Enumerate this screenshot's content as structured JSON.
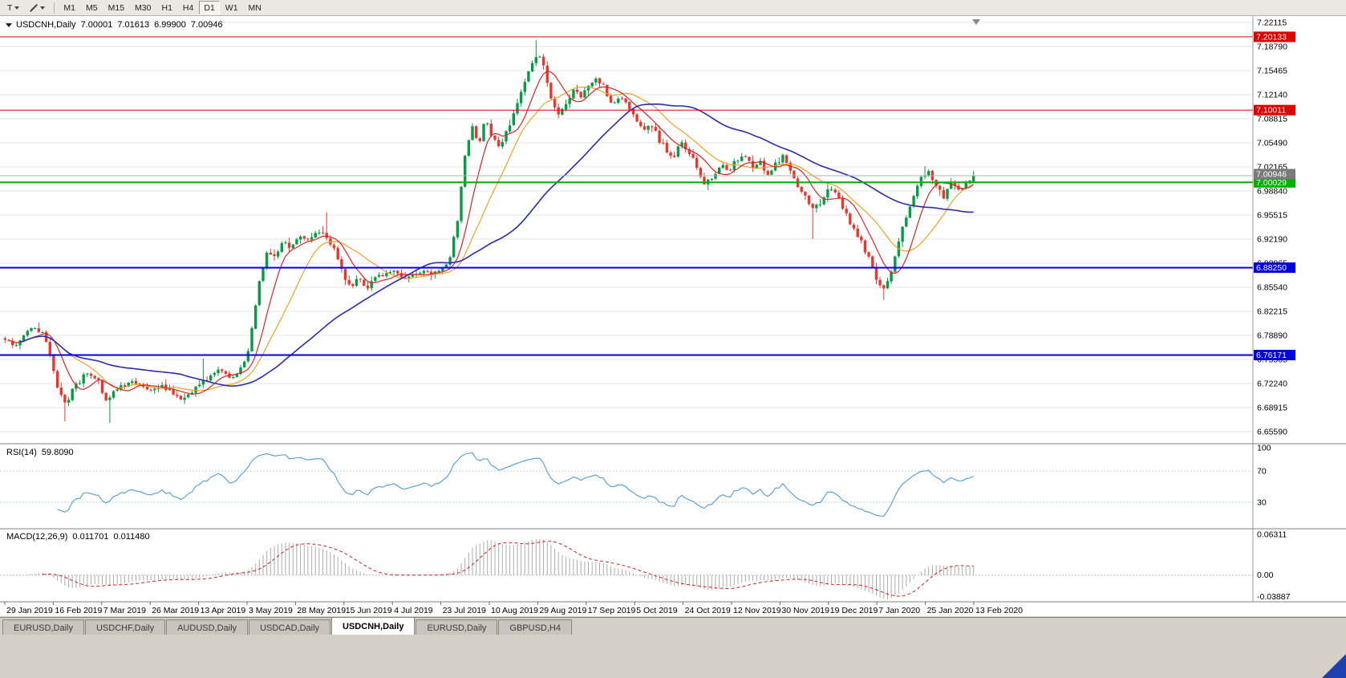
{
  "toolbar": {
    "text_tool_label": "T",
    "timeframes": [
      "M1",
      "M5",
      "M15",
      "M30",
      "H1",
      "H4",
      "D1",
      "W1",
      "MN"
    ],
    "active_timeframe": "D1"
  },
  "chart": {
    "symbol_title": "USDCNH,Daily",
    "ohlc": {
      "open": "7.00001",
      "high": "7.01613",
      "low": "6.99900",
      "close": "7.00946"
    }
  },
  "rsi_panel": {
    "name": "RSI(14)",
    "value": "59.8090",
    "scale": [
      "100",
      "70",
      "30"
    ]
  },
  "macd_panel": {
    "name": "MACD(12,26,9)",
    "value1": "0.011701",
    "value2": "0.011480",
    "scale": [
      "0.06311",
      "0.00",
      "-0.03887"
    ]
  },
  "tabs": {
    "items": [
      "EURUSD,Daily",
      "USDCHF,Daily",
      "AUDUSD,Daily",
      "USDCAD,Daily",
      "USDCNH,Daily",
      "EURUSD,Daily",
      "GBPUSD,H4"
    ],
    "active_index": 4
  },
  "chart_data": {
    "type": "candlestick+indicators",
    "symbol": "USDCNH",
    "timeframe": "Daily",
    "bars": 260,
    "x_labels": [
      "29 Jan 2019",
      "16 Feb 2019",
      "7 Mar 2019",
      "26 Mar 2019",
      "13 Apr 2019",
      "3 May 2019",
      "28 May 2019",
      "15 Jun 2019",
      "4 Jul 2019",
      "23 Jul 2019",
      "10 Aug 2019",
      "29 Aug 2019",
      "17 Sep 2019",
      "5 Oct 2019",
      "24 Oct 2019",
      "12 Nov 2019",
      "30 Nov 2019",
      "19 Dec 2019",
      "7 Jan 2020",
      "25 Jan 2020",
      "13 Feb 2020"
    ],
    "y_ticks_price": [
      "7.22115",
      "7.18790",
      "7.15465",
      "7.12140",
      "7.08815",
      "7.05490",
      "7.02165",
      "6.98840",
      "6.95515",
      "6.92190",
      "6.88865",
      "6.85540",
      "6.82215",
      "6.78890",
      "6.75565",
      "6.72240",
      "6.68915",
      "6.65590"
    ],
    "price_range": {
      "max": 7.2278,
      "min": 6.6404
    },
    "levels": [
      {
        "value": 7.20133,
        "label": "7.20133",
        "color": "#e00000",
        "width": 1
      },
      {
        "value": 7.10011,
        "label": "7.10011",
        "color": "#e00000",
        "width": 1
      },
      {
        "value": 7.00029,
        "label": "7.00029",
        "color": "#00b200",
        "width": 2
      },
      {
        "value": 6.8825,
        "label": "6.88250",
        "color": "#0000e0",
        "width": 2
      },
      {
        "value": 6.76171,
        "label": "6.76171",
        "color": "#0000e0",
        "width": 2
      }
    ],
    "current_price": 7.00946,
    "current_price_label": "7.00946",
    "last_bar": {
      "o": 7.00001,
      "h": 7.01613,
      "l": 6.999,
      "c": 7.00946
    },
    "price_path": [
      [
        0.0,
        6.785
      ],
      [
        0.01,
        6.772
      ],
      [
        0.02,
        6.788
      ],
      [
        0.03,
        6.8
      ],
      [
        0.04,
        6.792
      ],
      [
        0.048,
        6.752
      ],
      [
        0.055,
        6.712
      ],
      [
        0.062,
        6.695
      ],
      [
        0.072,
        6.718
      ],
      [
        0.085,
        6.738
      ],
      [
        0.095,
        6.728
      ],
      [
        0.105,
        6.7
      ],
      [
        0.115,
        6.712
      ],
      [
        0.128,
        6.726
      ],
      [
        0.14,
        6.718
      ],
      [
        0.152,
        6.712
      ],
      [
        0.162,
        6.722
      ],
      [
        0.172,
        6.71
      ],
      [
        0.182,
        6.7
      ],
      [
        0.192,
        6.712
      ],
      [
        0.202,
        6.722
      ],
      [
        0.212,
        6.73
      ],
      [
        0.222,
        6.742
      ],
      [
        0.232,
        6.731
      ],
      [
        0.242,
        6.739
      ],
      [
        0.25,
        6.758
      ],
      [
        0.257,
        6.812
      ],
      [
        0.263,
        6.868
      ],
      [
        0.27,
        6.902
      ],
      [
        0.278,
        6.897
      ],
      [
        0.286,
        6.918
      ],
      [
        0.295,
        6.91
      ],
      [
        0.304,
        6.926
      ],
      [
        0.313,
        6.92
      ],
      [
        0.322,
        6.933
      ],
      [
        0.331,
        6.926
      ],
      [
        0.34,
        6.91
      ],
      [
        0.349,
        6.874
      ],
      [
        0.357,
        6.852
      ],
      [
        0.364,
        6.87
      ],
      [
        0.372,
        6.853
      ],
      [
        0.381,
        6.866
      ],
      [
        0.391,
        6.874
      ],
      [
        0.401,
        6.877
      ],
      [
        0.411,
        6.869
      ],
      [
        0.421,
        6.873
      ],
      [
        0.431,
        6.877
      ],
      [
        0.441,
        6.873
      ],
      [
        0.451,
        6.88
      ],
      [
        0.46,
        6.898
      ],
      [
        0.468,
        6.955
      ],
      [
        0.475,
        7.04
      ],
      [
        0.482,
        7.08
      ],
      [
        0.489,
        7.055
      ],
      [
        0.496,
        7.086
      ],
      [
        0.504,
        7.06
      ],
      [
        0.511,
        7.046
      ],
      [
        0.519,
        7.076
      ],
      [
        0.527,
        7.1
      ],
      [
        0.535,
        7.132
      ],
      [
        0.543,
        7.16
      ],
      [
        0.55,
        7.178
      ],
      [
        0.556,
        7.165
      ],
      [
        0.563,
        7.12
      ],
      [
        0.571,
        7.093
      ],
      [
        0.579,
        7.108
      ],
      [
        0.587,
        7.129
      ],
      [
        0.595,
        7.116
      ],
      [
        0.603,
        7.134
      ],
      [
        0.611,
        7.146
      ],
      [
        0.619,
        7.13
      ],
      [
        0.627,
        7.108
      ],
      [
        0.635,
        7.116
      ],
      [
        0.643,
        7.105
      ],
      [
        0.651,
        7.09
      ],
      [
        0.659,
        7.07
      ],
      [
        0.667,
        7.08
      ],
      [
        0.675,
        7.06
      ],
      [
        0.683,
        7.046
      ],
      [
        0.691,
        7.036
      ],
      [
        0.699,
        7.056
      ],
      [
        0.707,
        7.04
      ],
      [
        0.715,
        7.02
      ],
      [
        0.723,
        6.997
      ],
      [
        0.731,
        7.01
      ],
      [
        0.739,
        7.026
      ],
      [
        0.747,
        7.016
      ],
      [
        0.755,
        7.03
      ],
      [
        0.763,
        7.04
      ],
      [
        0.771,
        7.02
      ],
      [
        0.779,
        7.03
      ],
      [
        0.787,
        7.01
      ],
      [
        0.795,
        7.026
      ],
      [
        0.803,
        7.036
      ],
      [
        0.811,
        7.016
      ],
      [
        0.819,
        6.996
      ],
      [
        0.827,
        6.98
      ],
      [
        0.835,
        6.96
      ],
      [
        0.843,
        6.976
      ],
      [
        0.851,
        6.996
      ],
      [
        0.859,
        6.984
      ],
      [
        0.867,
        6.96
      ],
      [
        0.875,
        6.94
      ],
      [
        0.883,
        6.92
      ],
      [
        0.891,
        6.9
      ],
      [
        0.899,
        6.868
      ],
      [
        0.906,
        6.85
      ],
      [
        0.914,
        6.872
      ],
      [
        0.922,
        6.914
      ],
      [
        0.93,
        6.952
      ],
      [
        0.938,
        6.98
      ],
      [
        0.946,
        7.006
      ],
      [
        0.953,
        7.018
      ],
      [
        0.961,
        6.994
      ],
      [
        0.969,
        6.98
      ],
      [
        0.977,
        7.0
      ],
      [
        0.985,
        6.99
      ],
      [
        0.993,
        6.998
      ],
      [
        1.0,
        7.009
      ]
    ],
    "special_wicks": [
      {
        "f": 0.062,
        "low": 6.67
      },
      {
        "f": 0.108,
        "low": 6.668
      },
      {
        "f": 0.205,
        "high": 6.757
      },
      {
        "f": 0.332,
        "high": 6.959
      },
      {
        "f": 0.55,
        "high": 7.1965
      },
      {
        "f": 0.835,
        "low": 6.922
      },
      {
        "f": 0.906,
        "low": 6.838
      },
      {
        "f": 0.951,
        "high": 7.0225
      }
    ],
    "indicators": {
      "moving_averages": [
        {
          "period": 8,
          "color": "#dd2222"
        },
        {
          "period": 17,
          "color": "#f0a11e"
        },
        {
          "period": 48,
          "color": "#2b2bb0"
        }
      ],
      "rsi": {
        "period": 14,
        "current": 59.809,
        "overbought": 70,
        "oversold": 30
      },
      "macd": {
        "fast": 12,
        "slow": 26,
        "signal": 9,
        "current": [
          0.011701,
          0.01148
        ],
        "scale_max": 0.06311,
        "scale_min": -0.03887
      }
    },
    "colors": {
      "grid": "#e4e4e4",
      "bull": "#089a44",
      "bear": "#e8372c",
      "ma_fast": "#dd2222",
      "ma_mid": "#f0a11e",
      "ma_slow": "#2b2bb0",
      "rsi_line": "#4f9bd5",
      "rsi_level": "#b9cfe4",
      "macd_hist": "#ababab",
      "macd_signal": "#d02020",
      "current": "#b0b0b0"
    }
  }
}
